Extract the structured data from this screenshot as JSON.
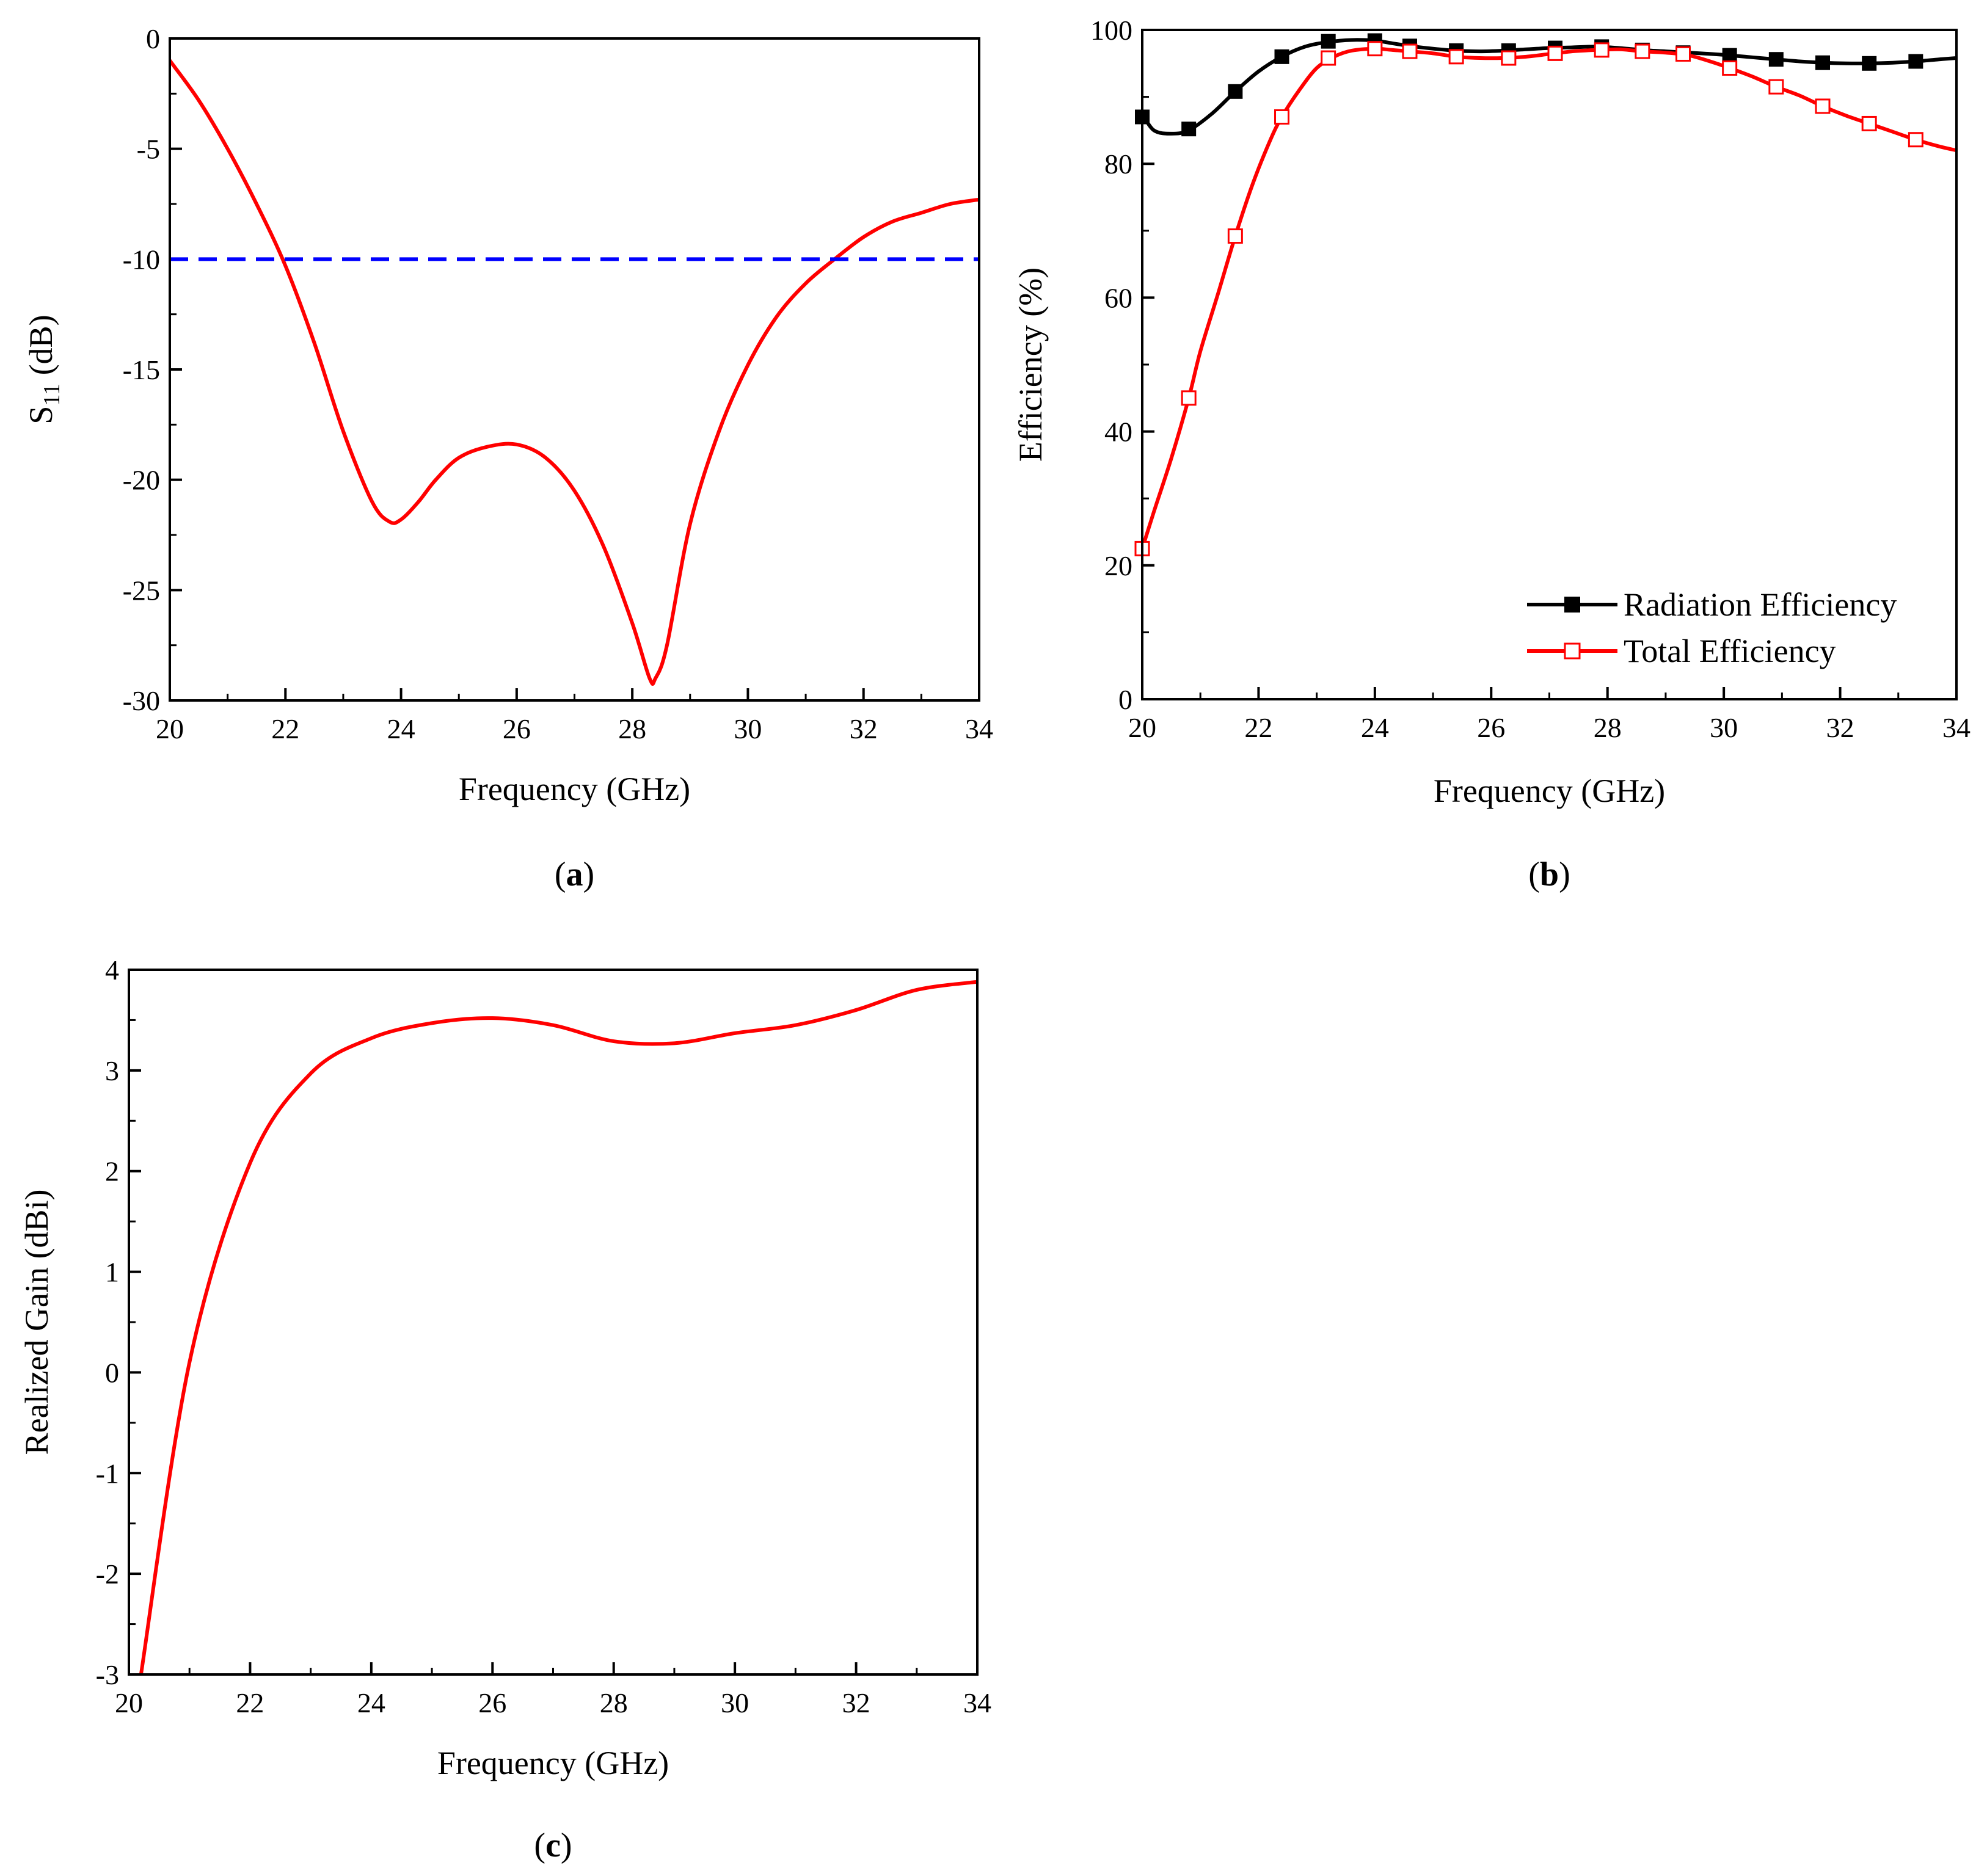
{
  "chart_data": [
    {
      "id": "a",
      "type": "line",
      "panel_label": "a",
      "xlabel": "Frequency (GHz)",
      "ylabel_main": "S",
      "ylabel_sub": "11",
      "ylabel_unit": " (dB)",
      "xlim": [
        20,
        34
      ],
      "ylim": [
        -30,
        0
      ],
      "xticks": [
        20,
        22,
        24,
        26,
        28,
        30,
        32,
        34
      ],
      "yticks": [
        0,
        -5,
        -10,
        -15,
        -20,
        -25,
        -30
      ],
      "ytick_labels": [
        "0",
        "-5",
        "-10",
        "-15",
        "-20",
        "-25",
        "-30"
      ],
      "series": [
        {
          "name": "S11",
          "color": "#ff0000",
          "x": [
            20.0,
            20.5,
            21.0,
            21.5,
            22.0,
            22.5,
            23.0,
            23.5,
            23.8,
            24.0,
            24.3,
            24.6,
            25.0,
            25.5,
            26.0,
            26.5,
            27.0,
            27.5,
            28.0,
            28.3,
            28.4,
            28.6,
            29.0,
            29.5,
            30.0,
            30.5,
            31.0,
            31.5,
            32.0,
            32.5,
            33.0,
            33.5,
            34.0
          ],
          "y": [
            -1.0,
            -2.8,
            -5.0,
            -7.5,
            -10.3,
            -13.8,
            -17.8,
            -21.0,
            -21.9,
            -21.8,
            -21.0,
            -20.0,
            -19.0,
            -18.5,
            -18.4,
            -19.0,
            -20.5,
            -23.0,
            -26.5,
            -29.0,
            -29.0,
            -27.5,
            -22.0,
            -17.8,
            -14.8,
            -12.6,
            -11.1,
            -10.0,
            -9.0,
            -8.3,
            -7.9,
            -7.5,
            -7.3
          ]
        },
        {
          "name": "-10 dB reference",
          "color": "#0000ff",
          "dashed": true,
          "x": [
            20,
            34
          ],
          "y": [
            -10,
            -10
          ]
        }
      ]
    },
    {
      "id": "b",
      "type": "line",
      "panel_label": "b",
      "xlabel": "Frequency (GHz)",
      "ylabel": "Efficiency (%)",
      "xlim": [
        20,
        34
      ],
      "ylim": [
        0,
        100
      ],
      "xticks": [
        20,
        22,
        24,
        26,
        28,
        30,
        32,
        34
      ],
      "yticks": [
        0,
        20,
        40,
        60,
        80,
        100
      ],
      "ytick_labels": [
        "0",
        "20",
        "40",
        "60",
        "80",
        "100"
      ],
      "legend_position": "bottom-right",
      "series": [
        {
          "name": "Radiation Efficiency",
          "color": "#000000",
          "marker": "filled-square",
          "x": [
            20.0,
            20.2,
            20.5,
            20.8,
            21.2,
            21.6,
            22.0,
            22.4,
            22.8,
            23.2,
            23.6,
            24.0,
            24.3,
            24.6,
            25.0,
            25.4,
            25.8,
            26.2,
            26.6,
            27.0,
            27.4,
            27.8,
            28.2,
            28.6,
            29.0,
            29.4,
            29.8,
            30.1,
            30.5,
            30.9,
            31.3,
            31.7,
            32.1,
            32.5,
            32.9,
            33.3,
            33.7,
            34.0
          ],
          "y": [
            87.5,
            85.0,
            84.5,
            85.0,
            87.5,
            90.8,
            93.8,
            96.0,
            97.5,
            98.2,
            98.5,
            98.4,
            98.0,
            97.6,
            97.2,
            96.9,
            96.8,
            96.9,
            97.1,
            97.3,
            97.4,
            97.5,
            97.3,
            97.0,
            96.8,
            96.6,
            96.4,
            96.2,
            95.9,
            95.6,
            95.3,
            95.1,
            95.0,
            95.0,
            95.1,
            95.3,
            95.6,
            95.8
          ],
          "marker_x": [
            20.0,
            20.8,
            21.6,
            22.4,
            23.2,
            24.0,
            24.6,
            25.4,
            26.3,
            27.1,
            27.9,
            28.6,
            29.3,
            30.1,
            30.9,
            31.7,
            32.5,
            33.3
          ],
          "marker_y": [
            87.0,
            85.2,
            90.8,
            96.0,
            98.3,
            98.4,
            97.6,
            96.9,
            96.9,
            97.3,
            97.5,
            97.0,
            96.6,
            96.2,
            95.6,
            95.1,
            95.0,
            95.3
          ]
        },
        {
          "name": "Total Efficiency",
          "color": "#ff0000",
          "marker": "open-square",
          "x": [
            20.0,
            20.2,
            20.5,
            20.8,
            21.0,
            21.3,
            21.6,
            21.9,
            22.2,
            22.4,
            22.7,
            23.0,
            23.3,
            23.6,
            24.0,
            24.3,
            24.6,
            25.0,
            25.4,
            25.8,
            26.2,
            26.6,
            27.0,
            27.4,
            27.8,
            28.2,
            28.6,
            29.0,
            29.4,
            29.8,
            30.1,
            30.5,
            30.9,
            31.3,
            31.7,
            32.1,
            32.5,
            32.9,
            33.3,
            33.7,
            34.0
          ],
          "y": [
            22.5,
            28.0,
            36.0,
            45.0,
            52.0,
            60.5,
            69.2,
            77.0,
            83.5,
            87.0,
            91.0,
            94.3,
            96.0,
            96.9,
            97.2,
            97.0,
            96.8,
            96.5,
            96.0,
            95.8,
            95.8,
            96.0,
            96.4,
            96.8,
            97.0,
            97.1,
            96.8,
            96.6,
            96.2,
            95.2,
            94.3,
            93.0,
            91.5,
            90.2,
            88.6,
            87.2,
            86.0,
            84.8,
            83.6,
            82.6,
            82.0
          ],
          "marker_x": [
            20.0,
            20.8,
            21.6,
            22.4,
            23.2,
            24.0,
            24.6,
            25.4,
            26.3,
            27.1,
            27.9,
            28.6,
            29.3,
            30.1,
            30.9,
            31.7,
            32.5,
            33.3
          ],
          "marker_y": [
            22.5,
            45.0,
            69.2,
            87.0,
            95.8,
            97.2,
            96.8,
            96.0,
            95.8,
            96.5,
            97.0,
            96.8,
            96.4,
            94.3,
            91.5,
            88.6,
            86.0,
            83.6
          ]
        }
      ]
    },
    {
      "id": "c",
      "type": "line",
      "panel_label": "c",
      "xlabel": "Frequency (GHz)",
      "ylabel": "Realized Gain (dBi)",
      "xlim": [
        20,
        34
      ],
      "ylim": [
        -3,
        4
      ],
      "xticks": [
        20,
        22,
        24,
        26,
        28,
        30,
        32,
        34
      ],
      "yticks": [
        4,
        3,
        2,
        1,
        0,
        -1,
        -2,
        -3
      ],
      "ytick_labels": [
        "4",
        "3",
        "2",
        "1",
        "0",
        "-1",
        "-2",
        "-3"
      ],
      "series": [
        {
          "name": "Realized Gain",
          "color": "#ff0000",
          "x": [
            20.2,
            21.0,
            22.0,
            23.0,
            24.0,
            25.0,
            26.0,
            27.0,
            28.0,
            29.0,
            30.0,
            31.0,
            32.0,
            33.0,
            34.0
          ],
          "y": [
            -3.0,
            0.1,
            2.08,
            2.97,
            3.32,
            3.47,
            3.52,
            3.45,
            3.29,
            3.27,
            3.37,
            3.45,
            3.6,
            3.8,
            3.88
          ]
        }
      ]
    }
  ]
}
